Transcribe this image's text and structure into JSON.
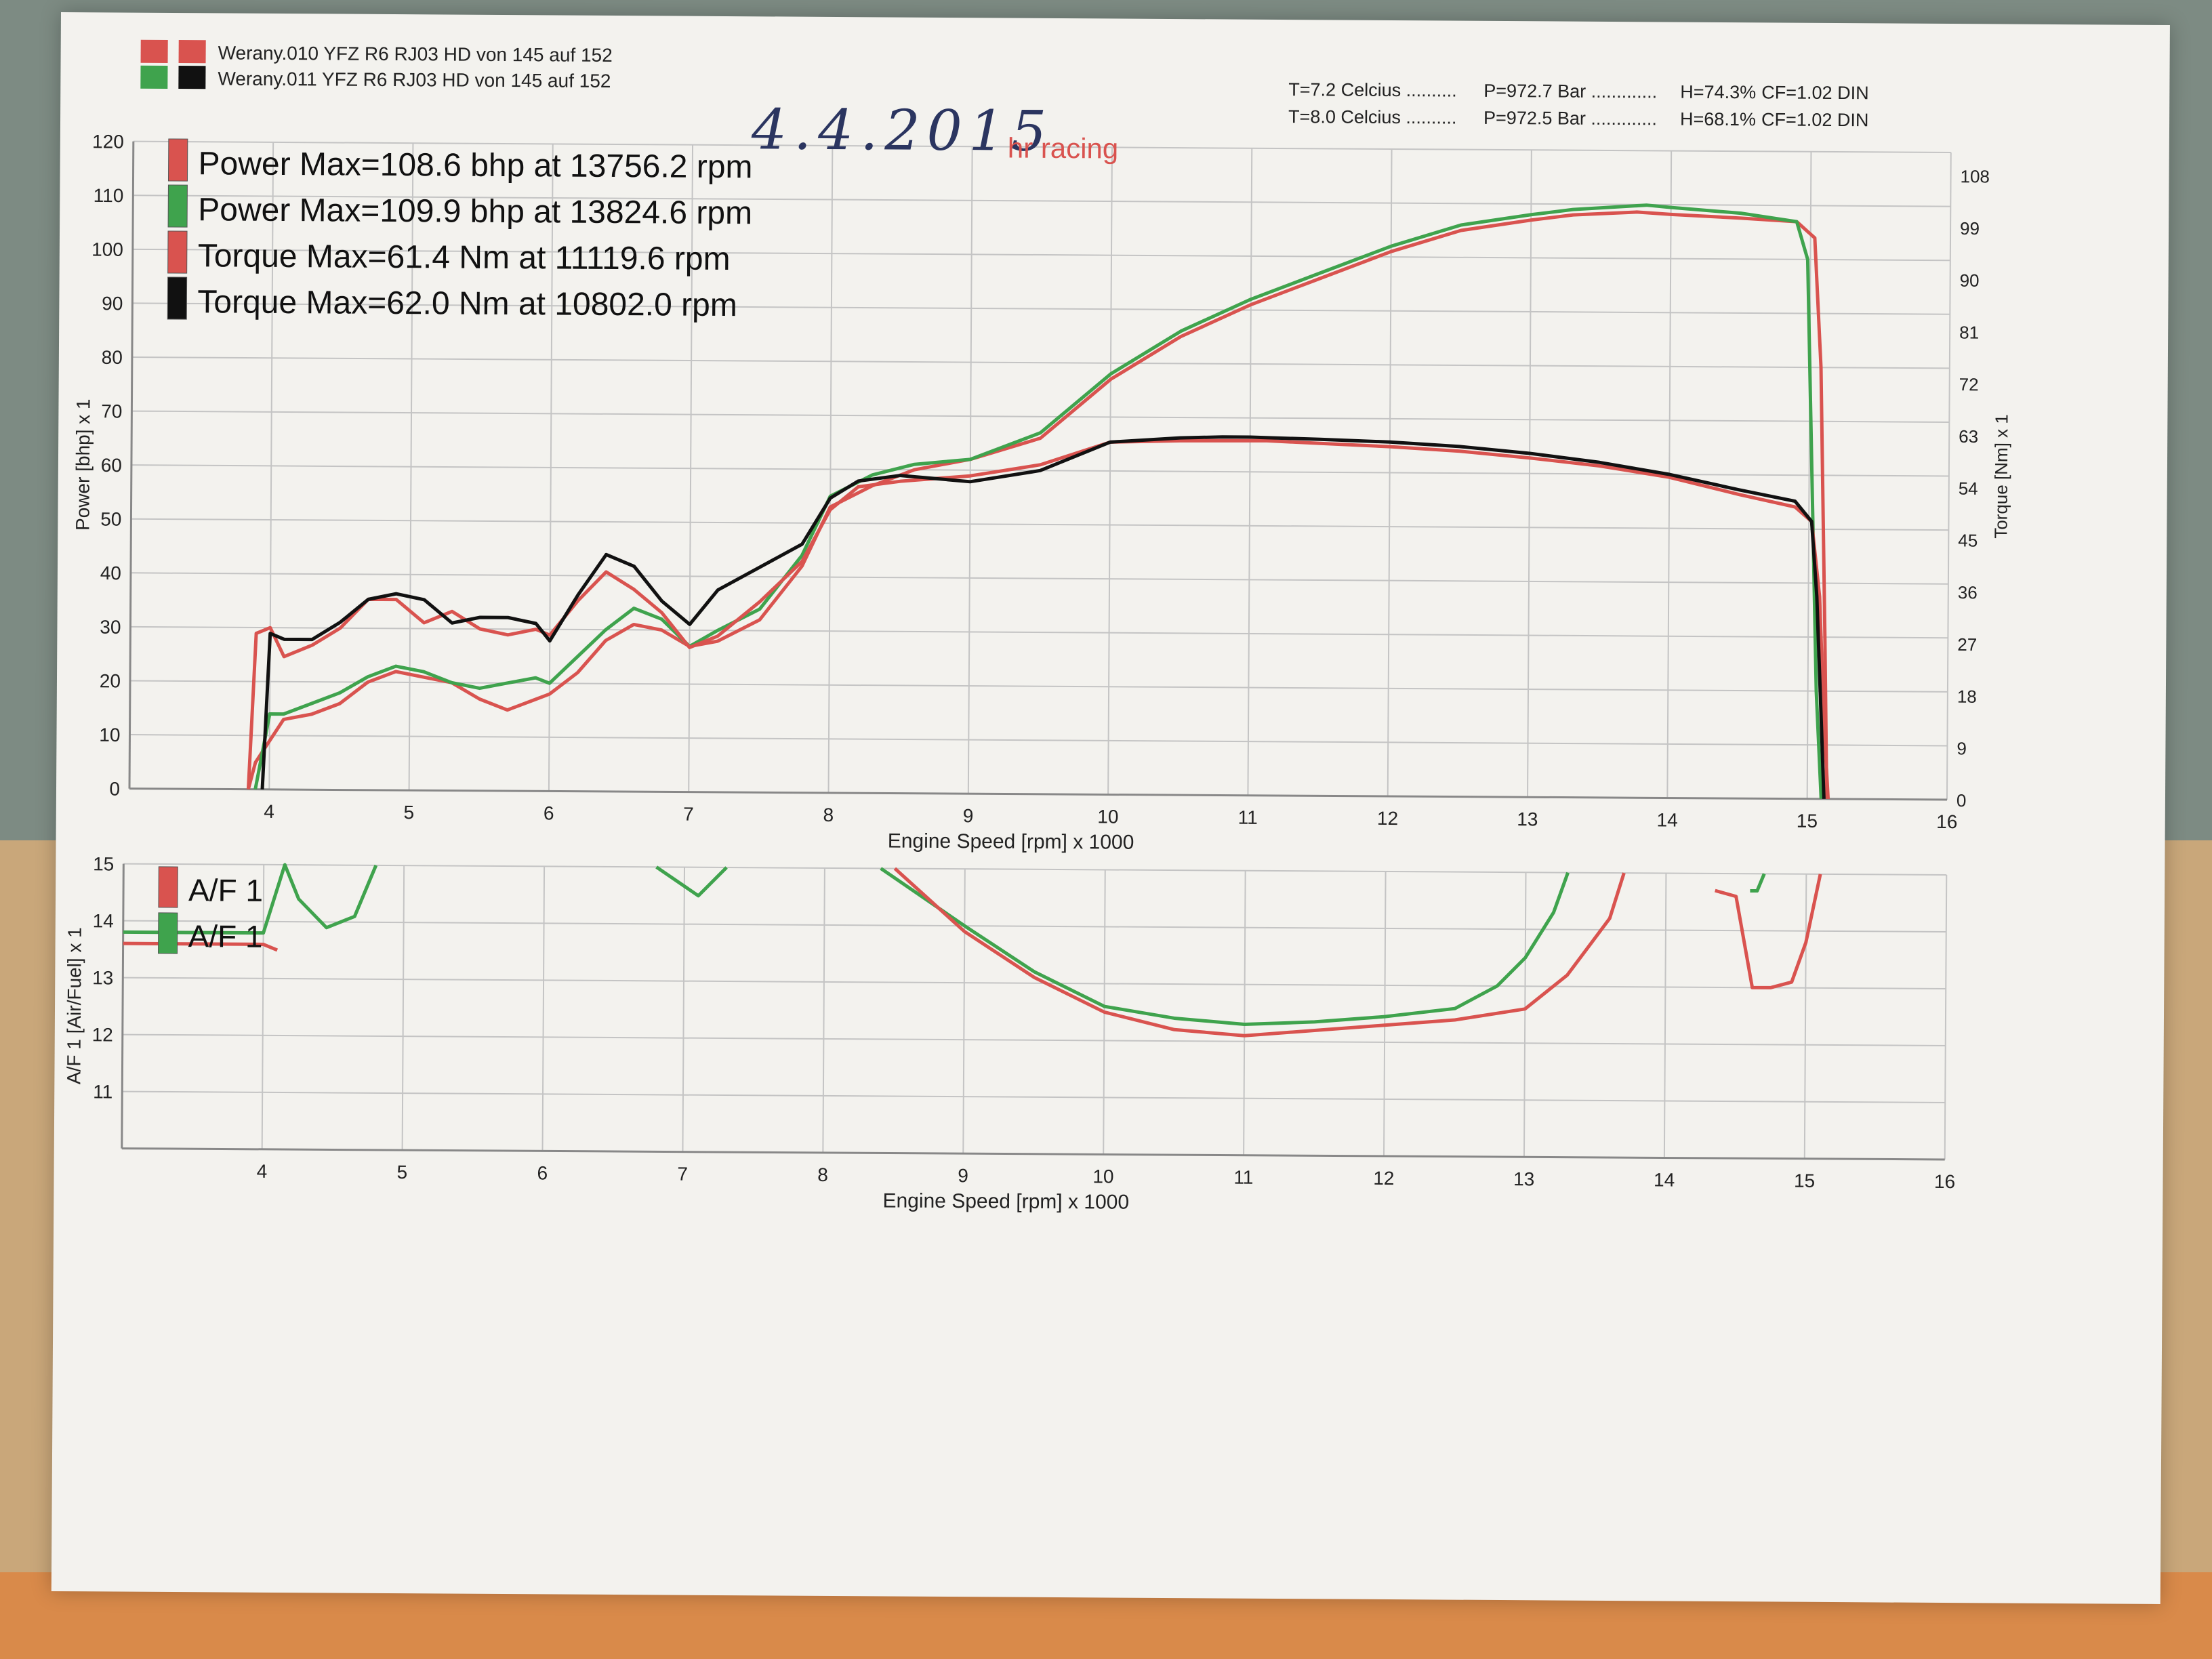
{
  "page": {
    "handwritten_date": "4.4.2015",
    "brand": "hr racing"
  },
  "header": {
    "runs": [
      {
        "label": "Werany.010 YFZ R6  RJ03   HD von 145 auf 152",
        "power_color": "#d9534f",
        "torque_color": "#d9534f"
      },
      {
        "label": "Werany.011 YFZ R6  RJ03   HD von 145 auf 152",
        "power_color": "#3fa34d",
        "torque_color": "#111111"
      }
    ],
    "conditions": [
      {
        "temp": "T=7.2 Celcius ..........",
        "pressure": "P=972.7 Bar .............",
        "humidity": "H=74.3%",
        "cf": "CF=1.02 DIN"
      },
      {
        "temp": "T=8.0 Celcius ..........",
        "pressure": "P=972.5 Bar .............",
        "humidity": "H=68.1%",
        "cf": "CF=1.02 DIN"
      }
    ]
  },
  "colors": {
    "red": "#d9534f",
    "green": "#3fa34d",
    "black": "#111111",
    "grid": "#c4c4c4"
  },
  "chart_data": [
    {
      "type": "line",
      "xlabel": "Engine Speed [rpm] x 1000",
      "ylabel": "Power [bhp] x 1",
      "y2label": "Torque [Nm] x 1",
      "xlim": [
        3,
        16
      ],
      "ylim": [
        0,
        120
      ],
      "y2lim": [
        0,
        112
      ],
      "xticks": [
        4,
        5,
        6,
        7,
        8,
        9,
        10,
        11,
        12,
        13,
        14,
        15,
        16
      ],
      "yticks": [
        0,
        10,
        20,
        30,
        40,
        50,
        60,
        70,
        80,
        90,
        100,
        110,
        120
      ],
      "y2ticks": [
        0,
        9,
        18,
        27,
        36,
        45,
        54,
        63,
        72,
        81,
        90,
        99,
        108
      ],
      "grid": true,
      "legend_position": "top-left",
      "legend": [
        {
          "swatch": "#d9534f",
          "text": "Power  Max=108.6 bhp at 13756.2 rpm"
        },
        {
          "swatch": "#3fa34d",
          "text": "Power  Max=109.9 bhp at 13824.6 rpm"
        },
        {
          "swatch": "#d9534f",
          "text": "Torque  Max=61.4 Nm at 11119.6 rpm"
        },
        {
          "swatch": "#111111",
          "text": "Torque  Max=62.0 Nm at 10802.0 rpm"
        }
      ],
      "series": [
        {
          "axis": "left",
          "color": "#d9534f",
          "x": [
            3.85,
            3.9,
            4.0,
            4.1,
            4.3,
            4.5,
            4.7,
            4.9,
            5.1,
            5.3,
            5.5,
            5.7,
            5.9,
            6.0,
            6.2,
            6.4,
            6.6,
            6.8,
            7.0,
            7.2,
            7.5,
            7.8,
            8.0,
            8.3,
            8.6,
            9.0,
            9.5,
            10.0,
            10.5,
            11.0,
            11.5,
            12.0,
            12.5,
            13.0,
            13.3,
            13.756,
            14.0,
            14.5,
            14.9,
            15.03,
            15.08,
            15.12,
            15.14
          ],
          "y": [
            0,
            5,
            9,
            13,
            14,
            16,
            20,
            22,
            21,
            20,
            17,
            15,
            17,
            18,
            22,
            28,
            31,
            30,
            27,
            28,
            32,
            42,
            53,
            57,
            60,
            62,
            66,
            77,
            85,
            91,
            96,
            101,
            105,
            107,
            108,
            108.6,
            108.2,
            107.6,
            107,
            104,
            80,
            30,
            0
          ]
        },
        {
          "axis": "left",
          "color": "#3fa34d",
          "x": [
            3.9,
            4.0,
            4.1,
            4.3,
            4.5,
            4.7,
            4.9,
            5.1,
            5.3,
            5.5,
            5.7,
            5.9,
            6.0,
            6.2,
            6.4,
            6.6,
            6.8,
            7.0,
            7.2,
            7.5,
            7.8,
            8.0,
            8.3,
            8.6,
            9.0,
            9.5,
            10.0,
            10.5,
            11.0,
            11.5,
            12.0,
            12.5,
            13.0,
            13.3,
            13.825,
            14.0,
            14.5,
            14.9,
            14.98,
            15.02,
            15.06,
            15.1
          ],
          "y": [
            0,
            14,
            14,
            16,
            18,
            21,
            23,
            22,
            20,
            19,
            20,
            21,
            20,
            25,
            30,
            34,
            32,
            27,
            30,
            34,
            44,
            55,
            59,
            61,
            62,
            67,
            78,
            86,
            92,
            97,
            102,
            106,
            108,
            109,
            109.9,
            109.5,
            108.5,
            107,
            100,
            60,
            20,
            0
          ]
        },
        {
          "axis": "right",
          "color": "#d9534f",
          "x": [
            3.85,
            3.9,
            4.0,
            4.1,
            4.3,
            4.5,
            4.7,
            4.9,
            5.1,
            5.3,
            5.5,
            5.7,
            5.9,
            6.0,
            6.2,
            6.4,
            6.6,
            6.8,
            7.0,
            7.2,
            7.5,
            7.8,
            8.0,
            8.2,
            8.5,
            9.0,
            9.5,
            10.0,
            10.5,
            11.12,
            11.5,
            12.0,
            12.5,
            13.0,
            13.5,
            14.0,
            14.5,
            14.9,
            15.02,
            15.08,
            15.12,
            15.15
          ],
          "y": [
            0,
            27,
            28,
            23,
            25,
            28,
            33,
            33,
            29,
            31,
            28,
            27,
            28,
            27,
            33,
            38,
            35,
            31,
            25,
            27,
            33,
            40,
            49,
            53,
            54,
            55,
            57,
            61,
            61.3,
            61.4,
            61,
            60.5,
            59.8,
            58.7,
            57.4,
            55.5,
            52.6,
            50.5,
            48,
            35,
            12,
            0
          ]
        },
        {
          "axis": "right",
          "color": "#111111",
          "x": [
            3.95,
            4.0,
            4.1,
            4.3,
            4.5,
            4.7,
            4.9,
            5.1,
            5.3,
            5.5,
            5.7,
            5.9,
            6.0,
            6.2,
            6.4,
            6.6,
            6.8,
            7.0,
            7.2,
            7.5,
            7.8,
            8.0,
            8.2,
            8.5,
            9.0,
            9.5,
            10.0,
            10.5,
            10.802,
            11.0,
            11.5,
            12.0,
            12.5,
            13.0,
            13.5,
            14.0,
            14.5,
            14.9,
            15.02,
            15.06,
            15.1,
            15.12
          ],
          "y": [
            0,
            27,
            26,
            26,
            29,
            33,
            34,
            33,
            29,
            30,
            30,
            29,
            26,
            34,
            41,
            39,
            33,
            29,
            35,
            39,
            43,
            51,
            54,
            55,
            54,
            56,
            61,
            61.8,
            62,
            62,
            61.7,
            61.3,
            60.6,
            59.5,
            58,
            56,
            53.4,
            51.5,
            48,
            35,
            12,
            0
          ]
        }
      ]
    },
    {
      "type": "line",
      "xlabel": "Engine Speed [rpm] x 1000",
      "ylabel": "A/F 1 [Air/Fuel] x 1",
      "xlim": [
        3,
        16
      ],
      "ylim": [
        10,
        15
      ],
      "xticks": [
        4,
        5,
        6,
        7,
        8,
        9,
        10,
        11,
        12,
        13,
        14,
        15,
        16
      ],
      "yticks": [
        11,
        12,
        13,
        14,
        15
      ],
      "grid": true,
      "legend_position": "top-left",
      "legend": [
        {
          "swatch": "#d9534f",
          "text": "A/F 1"
        },
        {
          "swatch": "#3fa34d",
          "text": "A/F 1"
        }
      ],
      "series": [
        {
          "color": "#3fa34d",
          "segments": [
            {
              "x": [
                3.0,
                4.0,
                4.15,
                4.25,
                4.45,
                4.65,
                4.8
              ],
              "y": [
                13.8,
                13.8,
                15,
                14.4,
                13.9,
                14.1,
                15
              ]
            },
            {
              "x": [
                6.8,
                7.1,
                7.3
              ],
              "y": [
                15,
                14.5,
                15
              ]
            },
            {
              "x": [
                8.4,
                9.0,
                9.5,
                10.0,
                10.5,
                11.0,
                11.5,
                12.0,
                12.5,
                12.8,
                13.0,
                13.2,
                13.3
              ],
              "y": [
                15,
                14.0,
                13.2,
                12.6,
                12.4,
                12.3,
                12.35,
                12.45,
                12.6,
                13.0,
                13.5,
                14.3,
                15
              ]
            },
            {
              "x": [
                14.6,
                14.65,
                14.7
              ],
              "y": [
                14.7,
                14.7,
                15
              ]
            }
          ]
        },
        {
          "color": "#d9534f",
          "segments": [
            {
              "x": [
                3.0,
                4.0,
                4.1
              ],
              "y": [
                13.6,
                13.6,
                13.5
              ]
            },
            {
              "x": [
                8.5,
                9.0,
                9.5,
                10.0,
                10.5,
                11.0,
                11.5,
                12.0,
                12.5,
                13.0,
                13.3,
                13.6,
                13.7
              ],
              "y": [
                15,
                13.9,
                13.1,
                12.5,
                12.2,
                12.1,
                12.2,
                12.3,
                12.4,
                12.6,
                13.2,
                14.2,
                15
              ]
            },
            {
              "x": [
                14.35,
                14.5,
                14.62,
                14.75,
                14.9,
                15.0,
                15.1
              ],
              "y": [
                14.7,
                14.6,
                13.0,
                13.0,
                13.1,
                13.8,
                15
              ]
            }
          ]
        }
      ]
    }
  ]
}
